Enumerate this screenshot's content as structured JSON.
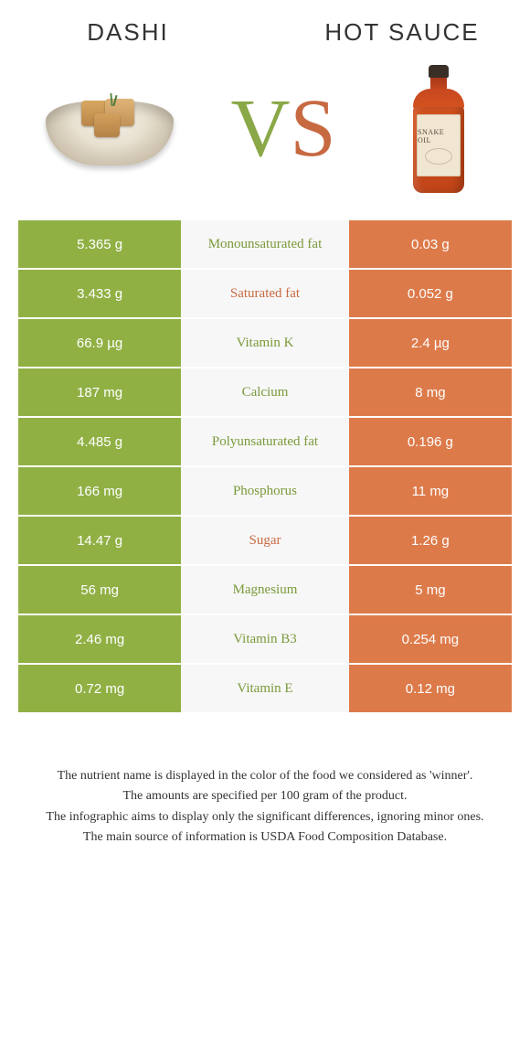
{
  "header": {
    "left_title": "Dashi",
    "right_title": "Hot sauce",
    "vs_v": "V",
    "vs_s": "S",
    "bottle_label_brand": "SNAKE OIL"
  },
  "colors": {
    "left_bg": "#90b044",
    "mid_bg": "#f7f7f7",
    "right_bg": "#dd7a4a",
    "mid_green_text": "#7a9a3a",
    "mid_orange_text": "#c76a42",
    "row_gap_color": "#ffffff"
  },
  "rows": [
    {
      "left": "5.365 g",
      "label": "Monounsaturated fat",
      "right": "0.03 g",
      "winner": "left"
    },
    {
      "left": "3.433 g",
      "label": "Saturated fat",
      "right": "0.052 g",
      "winner": "right"
    },
    {
      "left": "66.9 µg",
      "label": "Vitamin K",
      "right": "2.4 µg",
      "winner": "left"
    },
    {
      "left": "187 mg",
      "label": "Calcium",
      "right": "8 mg",
      "winner": "left"
    },
    {
      "left": "4.485 g",
      "label": "Polyunsaturated fat",
      "right": "0.196 g",
      "winner": "left"
    },
    {
      "left": "166 mg",
      "label": "Phosphorus",
      "right": "11 mg",
      "winner": "left"
    },
    {
      "left": "14.47 g",
      "label": "Sugar",
      "right": "1.26 g",
      "winner": "right"
    },
    {
      "left": "56 mg",
      "label": "Magnesium",
      "right": "5 mg",
      "winner": "left"
    },
    {
      "left": "2.46 mg",
      "label": "Vitamin B3",
      "right": "0.254 mg",
      "winner": "left"
    },
    {
      "left": "0.72 mg",
      "label": "Vitamin E",
      "right": "0.12 mg",
      "winner": "left"
    }
  ],
  "notes": {
    "line1": "The nutrient name is displayed in the color of the food we considered as 'winner'.",
    "line2": "The amounts are specified per 100 gram of the product.",
    "line3": "The infographic aims to display only the significant differences, ignoring minor ones.",
    "line4": "The main source of information is USDA Food Composition Database."
  }
}
